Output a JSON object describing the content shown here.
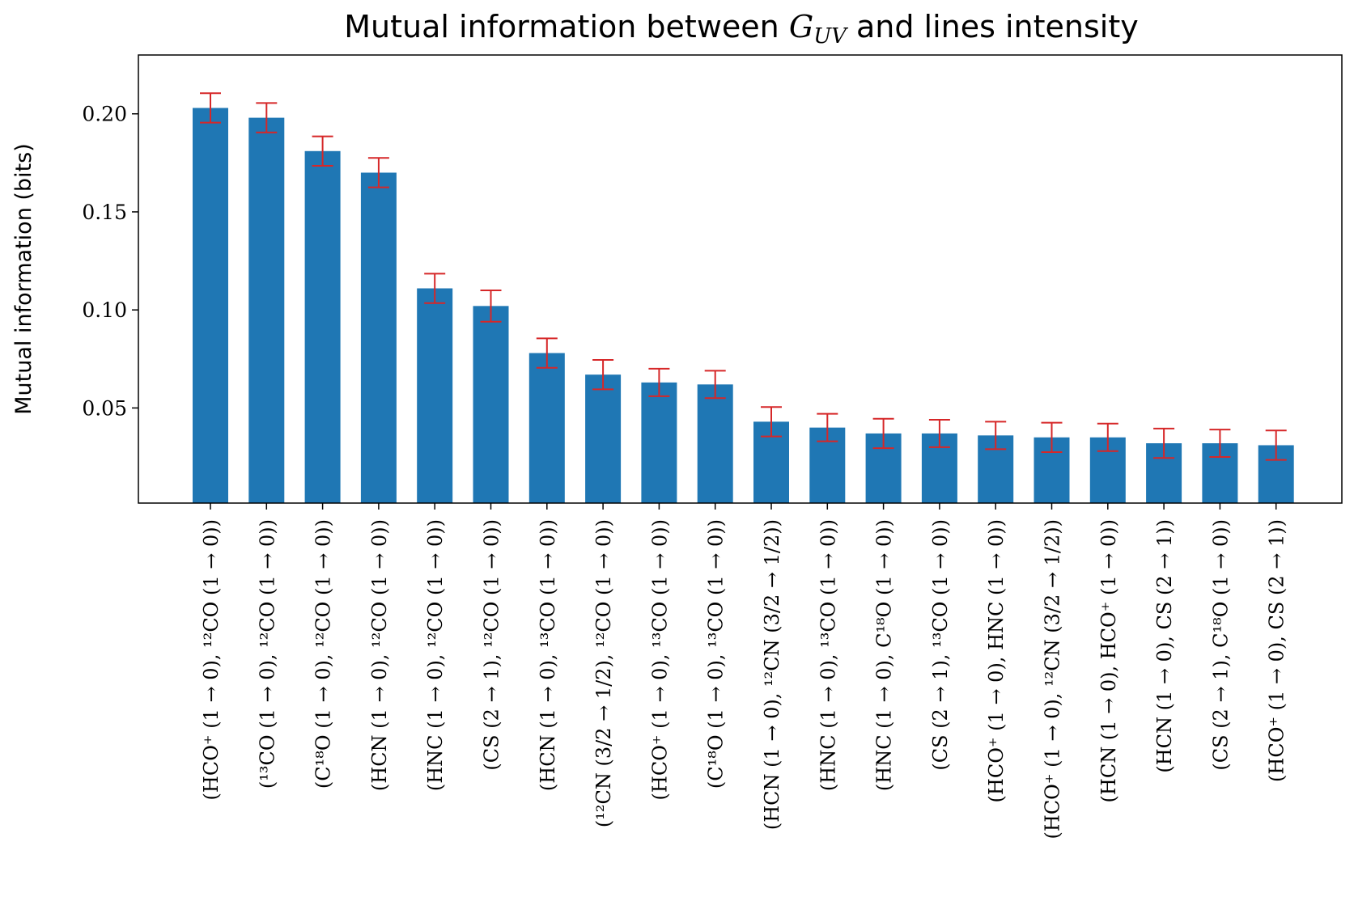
{
  "chart_data": {
    "type": "bar",
    "title": "Mutual information between G_UV and lines intensity",
    "xlabel": "",
    "ylabel": "Mutual information (bits)",
    "ylim": [
      0.0015,
      0.23
    ],
    "yticks": [
      0.05,
      0.1,
      0.15,
      0.2
    ],
    "ytick_labels": [
      "0.05",
      "0.10",
      "0.15",
      "0.20"
    ],
    "grid": false,
    "legend": "none",
    "colors": {
      "bar": "#1f77b4",
      "error": "#d62728"
    },
    "categories": [
      "(HCO⁺ (1 → 0), ¹²CO (1 → 0))",
      "(¹³CO (1 → 0), ¹²CO (1 → 0))",
      "(C¹⁸O (1 → 0), ¹²CO (1 → 0))",
      "(HCN (1 → 0), ¹²CO (1 → 0))",
      "(HNC (1 → 0), ¹²CO (1 → 0))",
      "(CS (2 → 1), ¹²CO (1 → 0))",
      "(HCN (1 → 0), ¹³CO (1 → 0))",
      "(¹²CN (3/2 → 1/2), ¹²CO (1 → 0))",
      "(HCO⁺ (1 → 0), ¹³CO (1 → 0))",
      "(C¹⁸O (1 → 0), ¹³CO (1 → 0))",
      "(HCN (1 → 0), ¹²CN (3/2 → 1/2))",
      "(HNC (1 → 0), ¹³CO (1 → 0))",
      "(HNC (1 → 0), C¹⁸O (1 → 0))",
      "(CS (2 → 1), ¹³CO (1 → 0))",
      "(HCO⁺ (1 → 0), HNC (1 → 0))",
      "(HCO⁺ (1 → 0), ¹²CN (3/2 → 1/2))",
      "(HCN (1 → 0), HCO⁺ (1 → 0))",
      "(HCN (1 → 0), CS (2 → 1))",
      "(CS (2 → 1), C¹⁸O (1 → 0))",
      "(HCO⁺ (1 → 0), CS (2 → 1))"
    ],
    "values": [
      0.203,
      0.198,
      0.181,
      0.17,
      0.111,
      0.102,
      0.078,
      0.067,
      0.063,
      0.062,
      0.043,
      0.04,
      0.037,
      0.037,
      0.036,
      0.035,
      0.035,
      0.032,
      0.032,
      0.031
    ],
    "errors": [
      0.0075,
      0.0075,
      0.0075,
      0.0075,
      0.0075,
      0.008,
      0.0075,
      0.0075,
      0.007,
      0.007,
      0.0075,
      0.007,
      0.0075,
      0.007,
      0.007,
      0.0075,
      0.007,
      0.0075,
      0.007,
      0.0075
    ]
  }
}
